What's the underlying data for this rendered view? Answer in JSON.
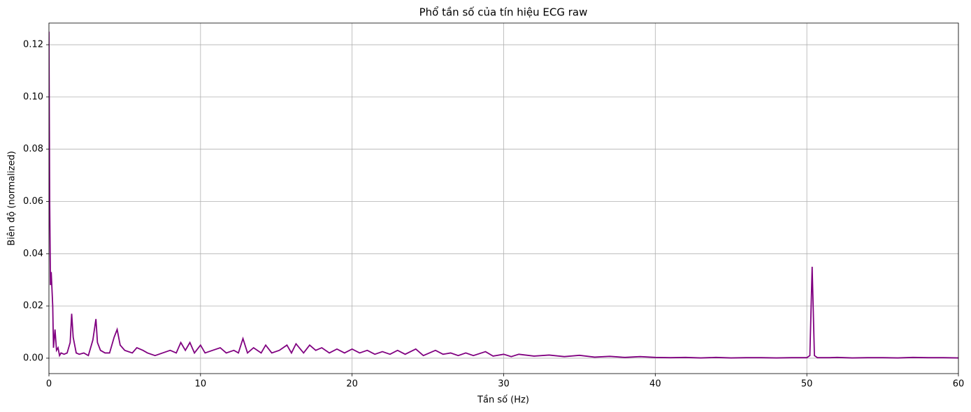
{
  "chart_data": {
    "type": "line",
    "title": "Phổ tần số của tín hiệu ECG raw",
    "xlabel": "Tần số (Hz)",
    "ylabel": "Biên độ (normalized)",
    "color": "#800080",
    "grid": true,
    "xlim": [
      0,
      60
    ],
    "ylim": [
      -0.0059,
      0.1283
    ],
    "xticks": [
      0,
      10,
      20,
      30,
      40,
      50,
      60
    ],
    "yticks": [
      {
        "value": 0,
        "label": "0.00"
      },
      0.02,
      0.04,
      0.06,
      0.08,
      {
        "value": 0.1,
        "label": "0.10"
      },
      0.12
    ],
    "x": [
      0,
      0.05,
      0.1,
      0.15,
      0.25,
      0.3,
      0.4,
      0.5,
      0.6,
      0.7,
      0.8,
      1.0,
      1.2,
      1.4,
      1.5,
      1.6,
      1.8,
      2.0,
      2.3,
      2.6,
      2.9,
      3.0,
      3.1,
      3.2,
      3.4,
      3.7,
      4.0,
      4.3,
      4.5,
      4.7,
      5.0,
      5.5,
      5.8,
      6.2,
      6.5,
      7.0,
      7.5,
      8.0,
      8.4,
      8.7,
      9.0,
      9.3,
      9.6,
      10.0,
      10.3,
      10.8,
      11.3,
      11.7,
      12.2,
      12.5,
      12.8,
      13.1,
      13.5,
      14.0,
      14.3,
      14.7,
      15.2,
      15.7,
      16.0,
      16.3,
      16.8,
      17.2,
      17.6,
      18.0,
      18.5,
      19.0,
      19.5,
      20.0,
      20.5,
      21.0,
      21.5,
      22.0,
      22.5,
      23.0,
      23.5,
      24.2,
      24.7,
      25.5,
      26.0,
      26.5,
      27.0,
      27.5,
      28.0,
      28.8,
      29.3,
      30.0,
      30.5,
      31,
      32,
      33,
      34,
      35,
      36,
      37,
      38,
      39,
      40,
      41,
      42,
      43,
      44,
      45,
      46,
      47,
      48,
      49,
      50,
      50.2,
      50.35,
      50.5,
      50.7,
      51.5,
      52,
      53,
      54,
      55,
      56,
      57,
      58,
      59,
      60
    ],
    "values": [
      0.125,
      0.06,
      0.028,
      0.033,
      0.02,
      0.004,
      0.011,
      0.003,
      0.004,
      0.001,
      0.002,
      0.0015,
      0.002,
      0.006,
      0.017,
      0.008,
      0.002,
      0.0015,
      0.002,
      0.001,
      0.007,
      0.011,
      0.015,
      0.006,
      0.003,
      0.002,
      0.002,
      0.008,
      0.011,
      0.005,
      0.003,
      0.002,
      0.004,
      0.003,
      0.002,
      0.001,
      0.002,
      0.003,
      0.002,
      0.006,
      0.003,
      0.006,
      0.002,
      0.005,
      0.002,
      0.003,
      0.004,
      0.002,
      0.003,
      0.002,
      0.0075,
      0.002,
      0.004,
      0.002,
      0.005,
      0.002,
      0.003,
      0.005,
      0.002,
      0.0055,
      0.002,
      0.005,
      0.003,
      0.004,
      0.002,
      0.0035,
      0.002,
      0.0035,
      0.002,
      0.003,
      0.0015,
      0.0025,
      0.0015,
      0.003,
      0.0015,
      0.0035,
      0.001,
      0.003,
      0.0015,
      0.002,
      0.001,
      0.002,
      0.001,
      0.0025,
      0.0008,
      0.0015,
      0.0006,
      0.0015,
      0.0008,
      0.0012,
      0.0006,
      0.0011,
      0.0004,
      0.0007,
      0.0003,
      0.0006,
      0.0003,
      0.0002,
      0.0003,
      0.0001,
      0.0003,
      0.0001,
      0.0002,
      0.0002,
      0.0001,
      0.0002,
      0.0002,
      0.001,
      0.035,
      0.001,
      0.0002,
      0.0002,
      0.0003,
      0.0001,
      0.0002,
      0.0002,
      0.0001,
      0.0003,
      0.0002,
      0.0002,
      0.0001
    ]
  }
}
